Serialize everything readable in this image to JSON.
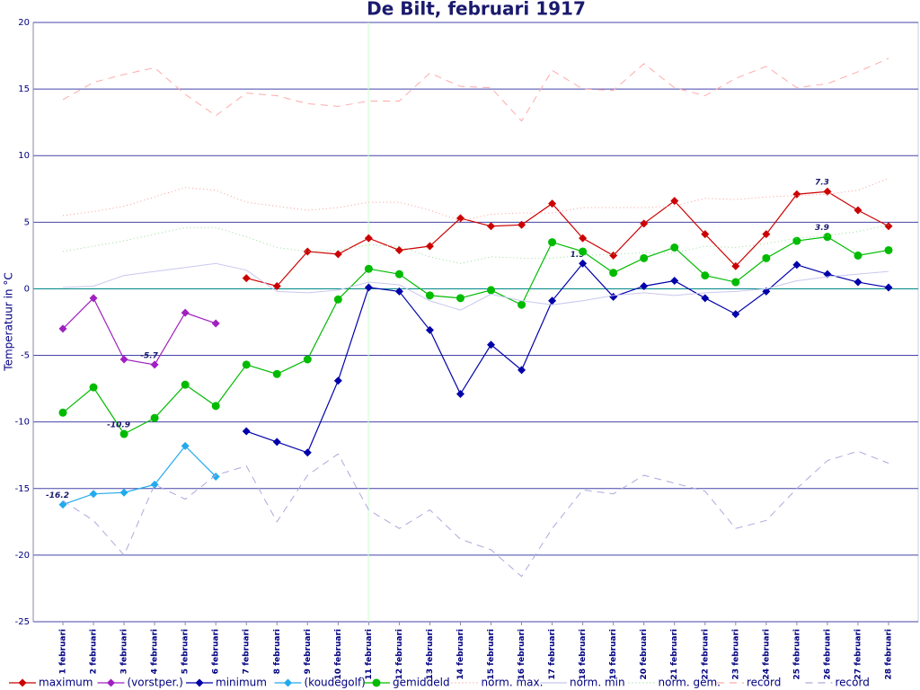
{
  "chart_data": {
    "type": "line",
    "title": "De Bilt, februari 1917",
    "y_label": "Temperatuur in °C",
    "categories": [
      "1 februari",
      "2 februari",
      "3 februari",
      "4 februari",
      "5 februari",
      "6 februari",
      "7 februari",
      "8 februari",
      "9 februari",
      "10 februari",
      "11 februari",
      "12 februari",
      "13 februari",
      "14 februari",
      "15 februari",
      "16 februari",
      "17 februari",
      "18 februari",
      "19 februari",
      "20 februari",
      "21 februari",
      "22 februari",
      "23 februari",
      "24 februari",
      "25 februari",
      "26 februari",
      "27 februari",
      "28 februari"
    ],
    "ylim": [
      -25,
      20
    ],
    "yticks": [
      -25,
      -20,
      -15,
      -10,
      -5,
      0,
      5,
      10,
      15,
      20
    ],
    "grid": true,
    "series": [
      {
        "name": "maximum",
        "color": "#cc0000",
        "style": "solid",
        "marker": "diamond",
        "values": [
          null,
          null,
          null,
          null,
          null,
          null,
          0.8,
          0.2,
          2.8,
          2.6,
          3.8,
          2.9,
          3.2,
          5.3,
          4.7,
          4.8,
          6.4,
          3.8,
          2.5,
          4.9,
          6.6,
          4.1,
          1.7,
          4.1,
          7.1,
          7.3,
          5.9,
          4.7
        ],
        "value_labels": [
          null,
          null,
          null,
          null,
          null,
          null,
          null,
          null,
          null,
          null,
          null,
          null,
          null,
          null,
          null,
          null,
          null,
          null,
          null,
          null,
          null,
          null,
          null,
          null,
          null,
          "7.3",
          null,
          null
        ]
      },
      {
        "name": "(vorstper.)",
        "color": "#a020c0",
        "style": "solid",
        "marker": "diamond",
        "values": [
          -3.0,
          -0.7,
          -5.3,
          -5.7,
          -1.8,
          -2.6,
          null,
          null,
          null,
          null,
          null,
          null,
          null,
          null,
          null,
          null,
          null,
          null,
          null,
          null,
          null,
          null,
          null,
          null,
          null,
          null,
          null,
          null
        ],
        "value_labels": [
          null,
          null,
          null,
          "-5.7",
          null,
          null,
          null,
          null,
          null,
          null,
          null,
          null,
          null,
          null,
          null,
          null,
          null,
          null,
          null,
          null,
          null,
          null,
          null,
          null,
          null,
          null,
          null,
          null
        ]
      },
      {
        "name": "minimum",
        "color": "#0000aa",
        "style": "solid",
        "marker": "diamond",
        "values": [
          null,
          null,
          null,
          null,
          null,
          null,
          -10.7,
          -11.5,
          -12.3,
          -6.9,
          0.1,
          -0.2,
          -3.1,
          -7.9,
          -4.2,
          -6.1,
          -0.9,
          1.9,
          -0.6,
          0.2,
          0.6,
          -0.7,
          -1.9,
          -0.2,
          1.8,
          1.1,
          0.5,
          0.1
        ],
        "value_labels": [
          null,
          null,
          null,
          null,
          null,
          null,
          null,
          null,
          null,
          null,
          null,
          null,
          null,
          null,
          null,
          null,
          null,
          "1.9",
          null,
          null,
          null,
          null,
          null,
          null,
          null,
          null,
          null,
          null
        ]
      },
      {
        "name": "(koudegolf)",
        "color": "#22aaee",
        "style": "solid",
        "marker": "diamond",
        "values": [
          -16.2,
          -15.4,
          -15.3,
          -14.7,
          -11.8,
          -14.1,
          null,
          null,
          null,
          null,
          null,
          null,
          null,
          null,
          null,
          null,
          null,
          null,
          null,
          null,
          null,
          null,
          null,
          null,
          null,
          null,
          null,
          null
        ],
        "value_labels": [
          "-16.2",
          null,
          null,
          null,
          null,
          null,
          null,
          null,
          null,
          null,
          null,
          null,
          null,
          null,
          null,
          null,
          null,
          null,
          null,
          null,
          null,
          null,
          null,
          null,
          null,
          null,
          null,
          null
        ]
      },
      {
        "name": "gemiddeld",
        "color": "#00bb00",
        "style": "solid",
        "marker": "circle",
        "values": [
          -9.3,
          -7.4,
          -10.9,
          -9.7,
          -7.2,
          -8.8,
          -5.7,
          -6.4,
          -5.3,
          -0.8,
          1.5,
          1.1,
          -0.5,
          -0.7,
          -0.1,
          -1.2,
          3.5,
          2.8,
          1.2,
          2.3,
          3.1,
          1.0,
          0.5,
          2.3,
          3.6,
          3.9,
          2.5,
          2.9
        ],
        "value_labels": [
          null,
          null,
          "-10.9",
          null,
          null,
          null,
          null,
          null,
          null,
          null,
          null,
          null,
          null,
          null,
          null,
          null,
          null,
          null,
          null,
          null,
          null,
          null,
          null,
          null,
          null,
          "3.9",
          null,
          null
        ]
      },
      {
        "name": "norm. max.",
        "color": "#ff9999",
        "style": "dotted",
        "marker": "none",
        "values": [
          5.5,
          5.8,
          6.2,
          6.9,
          7.6,
          7.4,
          6.5,
          6.2,
          5.9,
          6.1,
          6.5,
          6.5,
          5.9,
          5.1,
          5.6,
          5.7,
          5.7,
          6.1,
          6.1,
          6.1,
          6.2,
          6.8,
          6.7,
          6.9,
          7.0,
          7.1,
          7.4,
          8.3
        ]
      },
      {
        "name": "norm. min",
        "color": "#c8c8ee",
        "style": "solid",
        "marker": "none",
        "values": [
          0.1,
          0.2,
          1.0,
          1.3,
          1.6,
          1.9,
          1.4,
          -0.2,
          -0.3,
          -0.1,
          0.5,
          0.3,
          -0.9,
          -1.6,
          -0.4,
          -0.9,
          -1.2,
          -0.9,
          -0.5,
          -0.3,
          -0.5,
          -0.3,
          -0.2,
          0.0,
          0.6,
          0.9,
          1.1,
          1.3
        ]
      },
      {
        "name": "norm. gem.",
        "color": "#99dd99",
        "style": "dotted",
        "marker": "none",
        "values": [
          2.8,
          3.2,
          3.6,
          4.1,
          4.6,
          4.6,
          3.9,
          3.1,
          2.8,
          2.9,
          3.3,
          3.2,
          2.4,
          1.9,
          2.4,
          2.3,
          2.3,
          2.5,
          2.6,
          2.7,
          2.7,
          3.2,
          3.1,
          3.4,
          3.8,
          4.0,
          4.3,
          4.8
        ]
      },
      {
        "name": "record",
        "color": "#ffaaaa",
        "style": "dashed",
        "marker": "none",
        "values": [
          14.2,
          15.5,
          16.1,
          16.6,
          14.6,
          13.0,
          14.7,
          14.5,
          13.9,
          13.7,
          14.1,
          14.1,
          16.2,
          15.2,
          15.1,
          12.6,
          16.4,
          15.0,
          14.9,
          16.9,
          15.1,
          14.5,
          15.8,
          16.7,
          15.1,
          15.4,
          16.3,
          17.3
        ]
      },
      {
        "name": "record",
        "color": "#aaaadd",
        "style": "dashed",
        "marker": "none",
        "values": [
          -15.9,
          -17.4,
          -20.0,
          -14.7,
          -15.8,
          -14.0,
          -13.3,
          -17.5,
          -14.0,
          -12.4,
          -16.6,
          -18.0,
          -16.6,
          -18.8,
          -19.6,
          -21.6,
          -18.0,
          -15.1,
          -15.4,
          -14.0,
          -14.6,
          -15.2,
          -18.0,
          -17.4,
          -15.0,
          -12.9,
          -12.2,
          -13.1
        ]
      }
    ]
  }
}
